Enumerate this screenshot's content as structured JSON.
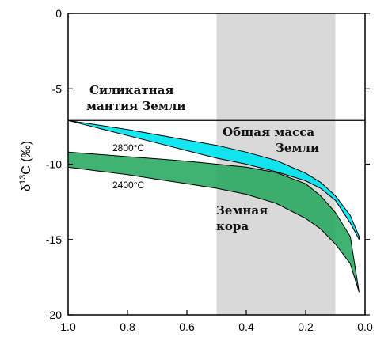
{
  "chart_data": {
    "type": "area",
    "title": "",
    "xlabel": "",
    "ylabel": "δ13C (‰)",
    "ylabel_parts": {
      "delta": "δ",
      "superscript": "13",
      "rest": "C (‰)"
    },
    "xlim": [
      1.0,
      0.0
    ],
    "ylim": [
      -20,
      0
    ],
    "x_reversed": true,
    "x_ticks": [
      "1.0",
      "0.8",
      "0.6",
      "0.4",
      "0.2",
      "0.0"
    ],
    "x_tick_values": [
      1.0,
      0.8,
      0.6,
      0.4,
      0.2,
      0.0
    ],
    "y_ticks": [
      "0",
      "-5",
      "-10",
      "-15",
      "-20"
    ],
    "y_tick_values": [
      0,
      -5,
      -10,
      -15,
      -20
    ],
    "shaded_region": {
      "x_from": 0.5,
      "x_to": 0.1,
      "color": "#d9d9d9"
    },
    "reference_line": {
      "y": -7.1,
      "color": "#000000"
    },
    "series": [
      {
        "name": "Общая масса Земли",
        "color": "#00e5ee",
        "upper": [
          [
            1.0,
            -7.1
          ],
          [
            0.9,
            -7.4
          ],
          [
            0.8,
            -7.7
          ],
          [
            0.7,
            -8.05
          ],
          [
            0.6,
            -8.4
          ],
          [
            0.5,
            -8.75
          ],
          [
            0.4,
            -9.2
          ],
          [
            0.3,
            -9.75
          ],
          [
            0.2,
            -10.6
          ],
          [
            0.15,
            -11.2
          ],
          [
            0.1,
            -12.1
          ],
          [
            0.05,
            -13.4
          ],
          [
            0.02,
            -14.8
          ]
        ],
        "lower": [
          [
            1.0,
            -7.1
          ],
          [
            0.9,
            -7.6
          ],
          [
            0.8,
            -8.1
          ],
          [
            0.7,
            -8.6
          ],
          [
            0.6,
            -9.1
          ],
          [
            0.5,
            -9.6
          ],
          [
            0.4,
            -10.0
          ],
          [
            0.3,
            -10.5
          ],
          [
            0.2,
            -11.1
          ],
          [
            0.15,
            -11.6
          ],
          [
            0.1,
            -12.4
          ],
          [
            0.05,
            -13.9
          ],
          [
            0.02,
            -15.0
          ]
        ]
      },
      {
        "name": "Земная кора",
        "color": "#1fa65a",
        "upper": [
          [
            1.0,
            -9.2
          ],
          [
            0.9,
            -9.35
          ],
          [
            0.8,
            -9.5
          ],
          [
            0.7,
            -9.65
          ],
          [
            0.6,
            -9.8
          ],
          [
            0.5,
            -10.0
          ],
          [
            0.4,
            -10.2
          ],
          [
            0.3,
            -10.55
          ],
          [
            0.2,
            -11.3
          ],
          [
            0.15,
            -12.1
          ],
          [
            0.1,
            -13.2
          ],
          [
            0.05,
            -14.8
          ],
          [
            0.02,
            -18.5
          ]
        ],
        "lower": [
          [
            1.0,
            -10.2
          ],
          [
            0.9,
            -10.45
          ],
          [
            0.8,
            -10.7
          ],
          [
            0.7,
            -11.0
          ],
          [
            0.6,
            -11.3
          ],
          [
            0.5,
            -11.6
          ],
          [
            0.4,
            -12.0
          ],
          [
            0.3,
            -12.6
          ],
          [
            0.2,
            -13.6
          ],
          [
            0.15,
            -14.3
          ],
          [
            0.1,
            -15.3
          ],
          [
            0.05,
            -16.6
          ],
          [
            0.02,
            -18.5
          ]
        ]
      }
    ],
    "curve_labels": [
      "2800°C",
      "2400°C"
    ],
    "annotations": {
      "mantle": [
        "Силикатная",
        "мантия Земли"
      ],
      "bulk": [
        "Общая масса",
        "Земли"
      ],
      "crust": [
        "Земная",
        "кора"
      ]
    },
    "grid": false
  }
}
